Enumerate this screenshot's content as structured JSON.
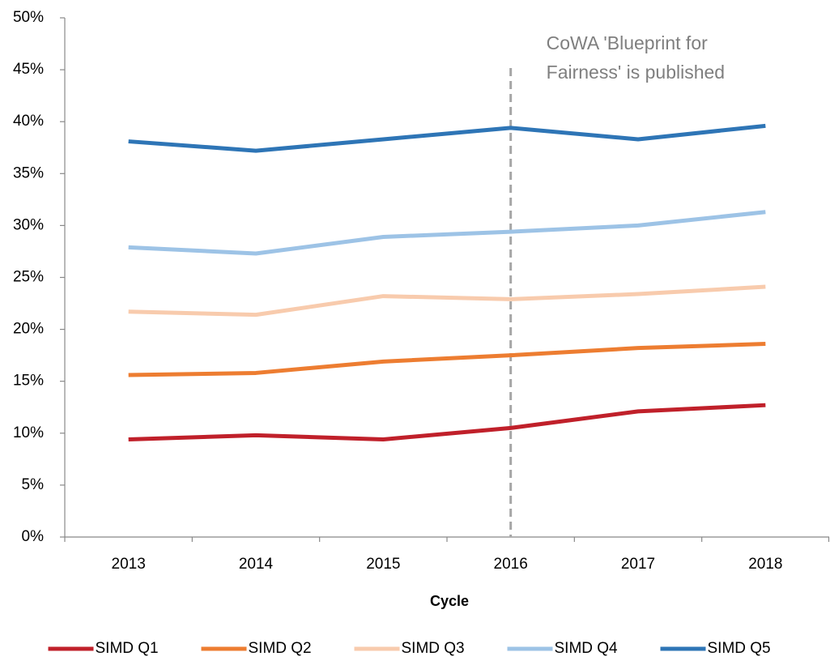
{
  "chart_data": {
    "type": "line",
    "x_label": "Cycle",
    "categories": [
      "2013",
      "2014",
      "2015",
      "2016",
      "2017",
      "2018"
    ],
    "series": [
      {
        "name": "SIMD Q1",
        "color": "#c0202a",
        "values": [
          9.4,
          9.8,
          9.4,
          10.5,
          12.1,
          12.7
        ]
      },
      {
        "name": "SIMD Q2",
        "color": "#ed7d31",
        "values": [
          15.6,
          15.8,
          16.9,
          17.5,
          18.2,
          18.6
        ]
      },
      {
        "name": "SIMD Q3",
        "color": "#f8cbad",
        "values": [
          21.7,
          21.4,
          23.2,
          22.9,
          23.4,
          24.1
        ]
      },
      {
        "name": "SIMD Q4",
        "color": "#9dc3e6",
        "values": [
          27.9,
          27.3,
          28.9,
          29.4,
          30.0,
          31.3
        ]
      },
      {
        "name": "SIMD Q5",
        "color": "#2e75b6",
        "values": [
          38.1,
          37.2,
          38.3,
          39.4,
          38.3,
          39.6
        ]
      }
    ],
    "ylim": [
      0,
      50
    ],
    "yticks": [
      {
        "value": 0,
        "label": "0%"
      },
      {
        "value": 5,
        "label": "5%"
      },
      {
        "value": 10,
        "label": "10%"
      },
      {
        "value": 15,
        "label": "15%"
      },
      {
        "value": 20,
        "label": "20%"
      },
      {
        "value": 25,
        "label": "25%"
      },
      {
        "value": 30,
        "label": "30%"
      },
      {
        "value": 35,
        "label": "35%"
      },
      {
        "value": 40,
        "label": "40%"
      },
      {
        "value": 45,
        "label": "45%"
      },
      {
        "value": 50,
        "label": "50%"
      }
    ],
    "annotation": {
      "x": "2016",
      "lines": [
        "CoWA 'Blueprint for",
        "Fairness' is published"
      ],
      "color": "#a6a6a6"
    },
    "legend": "bottom"
  }
}
